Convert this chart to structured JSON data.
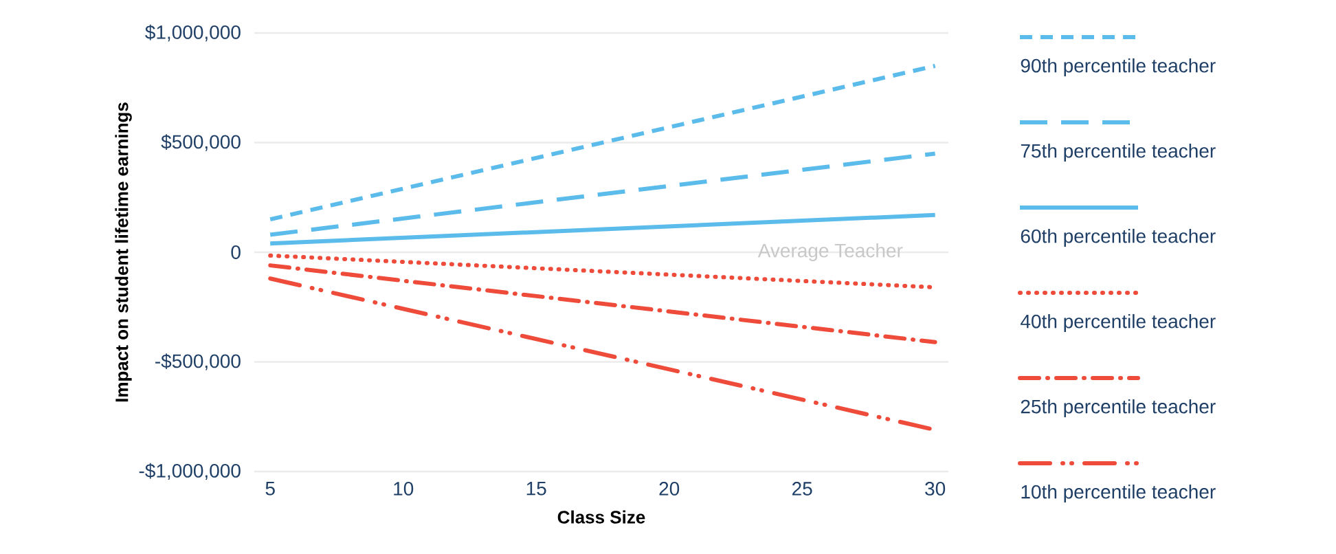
{
  "chart_data": {
    "type": "line",
    "xlabel": "Class Size",
    "ylabel": "Impact on student lifetime earnings",
    "x": [
      5,
      30
    ],
    "xlim": [
      4.4,
      30.5
    ],
    "xticks": [
      5,
      10,
      15,
      20,
      25,
      30
    ],
    "ylim": [
      -1000000,
      1000000
    ],
    "yticks": [
      {
        "value": -1000000,
        "label": "-$1,000,000"
      },
      {
        "value": -500000,
        "label": "-$500,000"
      },
      {
        "value": 0,
        "label": "0"
      },
      {
        "value": 500000,
        "label": "$500,000"
      },
      {
        "value": 1000000,
        "label": "$1,000,000"
      }
    ],
    "grid": "y",
    "legend": "right",
    "marker": "none",
    "annotations": [
      "Average Teacher"
    ],
    "series": [
      {
        "name": "90th percentile teacher",
        "color": "#5bbbea",
        "line_style": "dashed",
        "values": [
          150000,
          850000
        ]
      },
      {
        "name": "75th percentile teacher",
        "color": "#5bbbea",
        "line_style": "loosely dashed",
        "values": [
          80000,
          450000
        ]
      },
      {
        "name": "60th percentile teacher",
        "color": "#5bbbea",
        "line_style": "solid",
        "values": [
          40000,
          170000
        ]
      },
      {
        "name": "40th percentile teacher",
        "color": "#ee4b3a",
        "line_style": "dotted",
        "values": [
          -15000,
          -160000
        ]
      },
      {
        "name": "25th percentile teacher",
        "color": "#ee4b3a",
        "line_style": "dashdotted",
        "values": [
          -60000,
          -410000
        ]
      },
      {
        "name": "10th percentile teacher",
        "color": "#ee4b3a",
        "line_style": "dashdotdotted",
        "values": [
          -120000,
          -810000
        ]
      }
    ]
  }
}
